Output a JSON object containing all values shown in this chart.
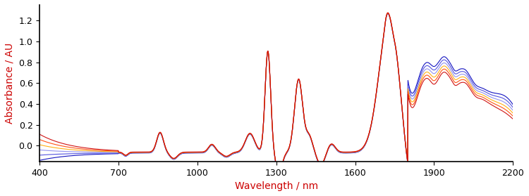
{
  "xlabel": "Wavelength / nm",
  "ylabel": "Absorbance / AU",
  "xlabel_color": "#cc0000",
  "ylabel_color": "#cc0000",
  "xmin": 400,
  "xmax": 2200,
  "ymin": -0.15,
  "ymax": 1.35,
  "yticks": [
    0.0,
    0.2,
    0.4,
    0.6,
    0.8,
    1.0,
    1.2
  ],
  "xticks": [
    400,
    700,
    1000,
    1300,
    1600,
    1900,
    2200
  ],
  "line_colors": [
    "#0000bb",
    "#4444dd",
    "#8888ee",
    "#ffaa00",
    "#ff4400",
    "#cc0000"
  ],
  "figsize": [
    7.5,
    2.79
  ],
  "dpi": 100
}
